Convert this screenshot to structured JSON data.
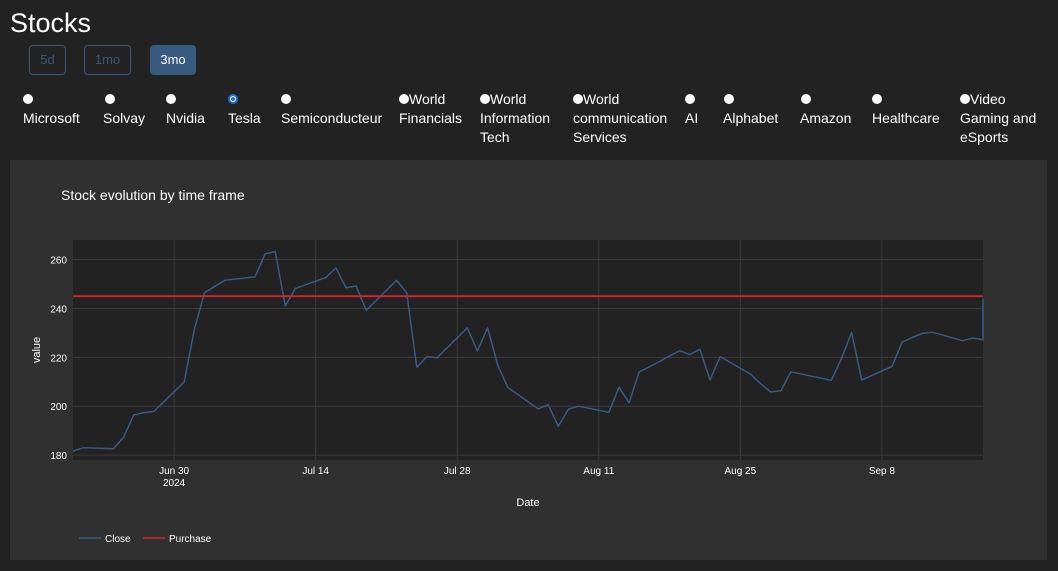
{
  "page": {
    "title": "Stocks"
  },
  "timeframes": [
    {
      "label": "5d",
      "active": false
    },
    {
      "label": "1mo",
      "active": false
    },
    {
      "label": "3mo",
      "active": true
    }
  ],
  "stocks": [
    {
      "line1": "",
      "line2": "Microsoft",
      "checked": false
    },
    {
      "line1": "",
      "line2": "Solvay",
      "checked": false
    },
    {
      "line1": "",
      "line2": "Nvidia",
      "checked": false
    },
    {
      "line1": "",
      "line2": "Tesla",
      "checked": true
    },
    {
      "line1": "",
      "line2": "Semiconducteur",
      "checked": false
    },
    {
      "line1": "World",
      "line2": "Financials",
      "checked": false
    },
    {
      "line1": "World",
      "line2": "Information",
      "line3": "Tech",
      "checked": false
    },
    {
      "line1": "World",
      "line2": "communication",
      "line3": "Services",
      "checked": false
    },
    {
      "line1": "",
      "line2": "AI",
      "checked": false
    },
    {
      "line1": "",
      "line2": "Alphabet",
      "checked": false
    },
    {
      "line1": "",
      "line2": "Amazon",
      "checked": false
    },
    {
      "line1": "",
      "line2": "Healthcare",
      "checked": false
    },
    {
      "line1": "Video",
      "line2": "Gaming and",
      "line3": "eSports",
      "checked": false
    }
  ],
  "colors": {
    "close_line": "#3a5a80",
    "purchase_line": "#d62728",
    "plot_bg": "#222222",
    "panel_bg": "#303030",
    "active_button": "#375a7f"
  },
  "chart_data": {
    "type": "line",
    "title": "Stock evolution by time frame",
    "xlabel": "Date",
    "ylabel": "value",
    "x_ticks": [
      {
        "label": "Jun 30",
        "sublabel": "2024",
        "date": "2024-06-30"
      },
      {
        "label": "Jul 14",
        "sublabel": "",
        "date": "2024-07-14"
      },
      {
        "label": "Jul 28",
        "sublabel": "",
        "date": "2024-07-28"
      },
      {
        "label": "Aug 11",
        "sublabel": "",
        "date": "2024-08-11"
      },
      {
        "label": "Aug 25",
        "sublabel": "",
        "date": "2024-08-25"
      },
      {
        "label": "Sep 8",
        "sublabel": "",
        "date": "2024-09-08"
      }
    ],
    "y_ticks": [
      180,
      200,
      220,
      240,
      260
    ],
    "xlim": [
      "2024-06-20",
      "2024-09-18"
    ],
    "ylim": [
      178,
      268
    ],
    "legend_position": "bottom-left",
    "grid": true,
    "series": [
      {
        "name": "Close",
        "color": "#3a5a80",
        "points": [
          [
            "2024-06-20",
            181.6
          ],
          [
            "2024-06-21",
            183.0
          ],
          [
            "2024-06-24",
            182.6
          ],
          [
            "2024-06-25",
            187.3
          ],
          [
            "2024-06-26",
            196.4
          ],
          [
            "2024-06-27",
            197.4
          ],
          [
            "2024-06-28",
            197.9
          ],
          [
            "2024-07-01",
            209.9
          ],
          [
            "2024-07-02",
            231.3
          ],
          [
            "2024-07-03",
            246.4
          ],
          [
            "2024-07-05",
            251.5
          ],
          [
            "2024-07-08",
            252.9
          ],
          [
            "2024-07-09",
            262.3
          ],
          [
            "2024-07-10",
            263.3
          ],
          [
            "2024-07-11",
            241.0
          ],
          [
            "2024-07-12",
            248.2
          ],
          [
            "2024-07-15",
            252.6
          ],
          [
            "2024-07-16",
            256.6
          ],
          [
            "2024-07-17",
            248.5
          ],
          [
            "2024-07-18",
            249.2
          ],
          [
            "2024-07-19",
            239.2
          ],
          [
            "2024-07-22",
            251.5
          ],
          [
            "2024-07-23",
            246.4
          ],
          [
            "2024-07-24",
            215.9
          ],
          [
            "2024-07-25",
            220.3
          ],
          [
            "2024-07-26",
            219.8
          ],
          [
            "2024-07-29",
            232.1
          ],
          [
            "2024-07-30",
            222.6
          ],
          [
            "2024-07-31",
            232.1
          ],
          [
            "2024-08-01",
            216.9
          ],
          [
            "2024-08-02",
            207.7
          ],
          [
            "2024-08-05",
            198.9
          ],
          [
            "2024-08-06",
            200.6
          ],
          [
            "2024-08-07",
            191.8
          ],
          [
            "2024-08-08",
            198.8
          ],
          [
            "2024-08-09",
            200.0
          ],
          [
            "2024-08-12",
            197.5
          ],
          [
            "2024-08-13",
            207.8
          ],
          [
            "2024-08-14",
            201.4
          ],
          [
            "2024-08-15",
            214.1
          ],
          [
            "2024-08-16",
            216.1
          ],
          [
            "2024-08-19",
            222.7
          ],
          [
            "2024-08-20",
            221.1
          ],
          [
            "2024-08-21",
            223.3
          ],
          [
            "2024-08-22",
            210.7
          ],
          [
            "2024-08-23",
            220.3
          ],
          [
            "2024-08-26",
            213.2
          ],
          [
            "2024-08-27",
            209.2
          ],
          [
            "2024-08-28",
            205.8
          ],
          [
            "2024-08-29",
            206.3
          ],
          [
            "2024-08-30",
            214.1
          ],
          [
            "2024-09-03",
            210.6
          ],
          [
            "2024-09-04",
            219.4
          ],
          [
            "2024-09-05",
            230.2
          ],
          [
            "2024-09-06",
            210.7
          ],
          [
            "2024-09-09",
            216.3
          ],
          [
            "2024-09-10",
            226.2
          ],
          [
            "2024-09-11",
            228.1
          ],
          [
            "2024-09-12",
            229.8
          ],
          [
            "2024-09-13",
            230.3
          ],
          [
            "2024-09-16",
            226.8
          ],
          [
            "2024-09-17",
            227.9
          ],
          [
            "2024-09-18",
            227.2
          ],
          [
            "2024-09-19",
            243.9
          ]
        ]
      },
      {
        "name": "Purchase",
        "color": "#d62728",
        "points": [
          [
            "2024-06-20",
            245
          ],
          [
            "2024-09-19",
            245
          ]
        ]
      }
    ]
  }
}
